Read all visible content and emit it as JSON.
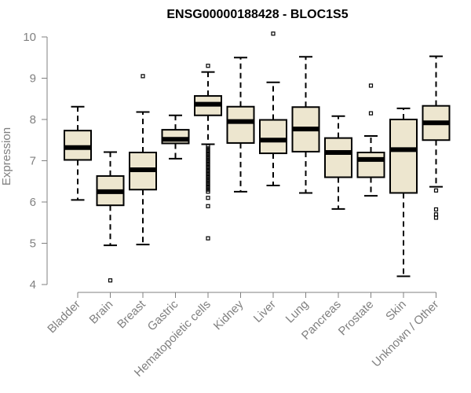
{
  "chart_data": {
    "type": "box",
    "title": "ENSG00000188428 - BLOC1S5",
    "ylabel": "Expression",
    "ylim": [
      4,
      10
    ],
    "yticks": [
      4,
      5,
      6,
      7,
      8,
      9,
      10
    ],
    "grid": false,
    "colors": {
      "box_fill": "#ede6cf",
      "stroke": "#000000",
      "axis": "#808080"
    },
    "categories": [
      "Bladder",
      "Brain",
      "Breast",
      "Gastric",
      "Hematopoietic cells",
      "Kidney",
      "Liver",
      "Lung",
      "Pancreas",
      "Prostate",
      "Skin",
      "Unknown / Other"
    ],
    "boxes": [
      {
        "category": "Bladder",
        "whisker_low": 6.05,
        "q1": 7.02,
        "median": 7.32,
        "q3": 7.73,
        "whisker_high": 8.31,
        "outliers": []
      },
      {
        "category": "Brain",
        "whisker_low": 4.95,
        "q1": 5.92,
        "median": 6.25,
        "q3": 6.63,
        "whisker_high": 7.21,
        "outliers": [
          4.1
        ]
      },
      {
        "category": "Breast",
        "whisker_low": 4.97,
        "q1": 6.3,
        "median": 6.78,
        "q3": 7.2,
        "whisker_high": 8.18,
        "outliers": [
          9.05
        ]
      },
      {
        "category": "Gastric",
        "whisker_low": 7.05,
        "q1": 7.42,
        "median": 7.52,
        "q3": 7.75,
        "whisker_high": 8.1,
        "outliers": []
      },
      {
        "category": "Hematopoietic cells",
        "whisker_low": 7.4,
        "q1": 8.1,
        "median": 8.37,
        "q3": 8.57,
        "whisker_high": 9.15,
        "outliers": [
          9.3,
          7.35,
          7.3,
          7.25,
          7.2,
          7.15,
          7.1,
          7.05,
          7.0,
          6.95,
          6.9,
          6.85,
          6.8,
          6.75,
          6.7,
          6.65,
          6.6,
          6.55,
          6.5,
          6.45,
          6.4,
          6.35,
          6.3,
          6.25,
          6.1,
          5.9,
          5.12
        ]
      },
      {
        "category": "Kidney",
        "whisker_low": 6.25,
        "q1": 7.43,
        "median": 7.95,
        "q3": 8.31,
        "whisker_high": 9.5,
        "outliers": []
      },
      {
        "category": "Liver",
        "whisker_low": 6.4,
        "q1": 7.18,
        "median": 7.5,
        "q3": 7.99,
        "whisker_high": 8.9,
        "outliers": [
          10.08
        ]
      },
      {
        "category": "Lung",
        "whisker_low": 6.22,
        "q1": 7.22,
        "median": 7.77,
        "q3": 8.3,
        "whisker_high": 9.52,
        "outliers": []
      },
      {
        "category": "Pancreas",
        "whisker_low": 5.83,
        "q1": 6.6,
        "median": 7.2,
        "q3": 7.55,
        "whisker_high": 8.08,
        "outliers": []
      },
      {
        "category": "Prostate",
        "whisker_low": 6.15,
        "q1": 6.6,
        "median": 7.03,
        "q3": 7.2,
        "whisker_high": 7.6,
        "outliers": [
          8.82,
          8.15
        ]
      },
      {
        "category": "Skin",
        "whisker_low": 4.2,
        "q1": 6.22,
        "median": 7.27,
        "q3": 8.0,
        "whisker_high": 8.27,
        "outliers": []
      },
      {
        "category": "Unknown / Other",
        "whisker_low": 6.37,
        "q1": 7.5,
        "median": 7.92,
        "q3": 8.33,
        "whisker_high": 9.53,
        "outliers": [
          6.28,
          5.82,
          5.7,
          5.62
        ]
      }
    ]
  }
}
